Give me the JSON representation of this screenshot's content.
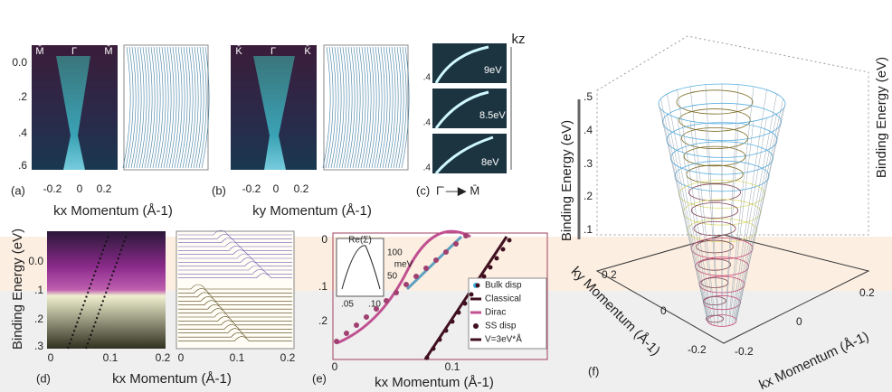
{
  "a": {
    "label": "(a)",
    "top": [
      "M̄",
      "Γ",
      "M̄"
    ],
    "yticks": [
      "0.0",
      ".2",
      ".4",
      ".6"
    ],
    "xticks": [
      "-0.2",
      "0",
      "0.2"
    ]
  },
  "b": {
    "label": "(b)",
    "top": [
      "K̄",
      "Γ",
      "K̄"
    ],
    "xticks": [
      "-0.2",
      "0",
      "0.2"
    ]
  },
  "ab_axes": {
    "kx": "kx Momentum (Å-1)",
    "ky": "ky Momentum (Å-1)"
  },
  "c": {
    "label": "(c)",
    "kz": "kz",
    "energies": [
      "9eV",
      "8.5eV",
      "8eV"
    ],
    "yticks": [
      ".4",
      ".4",
      ".4"
    ],
    "direction": "Γ̄ —▶ M̄"
  },
  "d": {
    "label": "(d)",
    "ylabel": "Binding Energy (eV)",
    "yticks": [
      "0.0",
      ".1",
      ".2",
      ".3"
    ],
    "xticks_left": [
      "0",
      "0.1",
      "0.2"
    ],
    "xticks_right": [
      "0",
      "0.1",
      "0.2"
    ],
    "xlabel": "kx Momentum (Å-1)"
  },
  "e": {
    "label": "(e)",
    "yticks": [
      "0",
      ".1",
      ".2"
    ],
    "xticks": [
      "0",
      "0.1"
    ],
    "xlabel": "kx Momentum (Å-1)",
    "inset": {
      "title": "Re(Σ)",
      "unit": "meV",
      "yticks": [
        "100",
        "50"
      ],
      "xticks": [
        ".05",
        ".10"
      ]
    },
    "legend": [
      "Bulk disp",
      "Classical",
      "Dirac",
      "SS disp",
      "V=3eV*Å"
    ]
  },
  "f": {
    "label": "(f)",
    "zlabel": "Binding Energy (eV)",
    "zticks": [
      ".5",
      ".4",
      ".3",
      ".2",
      ".1"
    ],
    "ylabel": "ky Momentum (Å-1)",
    "xlabel": "kx Momentum (Å-1)",
    "yticks": [
      "0.2",
      "0",
      "-0.2"
    ],
    "xticks": [
      "-0.2",
      "0",
      "0.2"
    ]
  }
}
